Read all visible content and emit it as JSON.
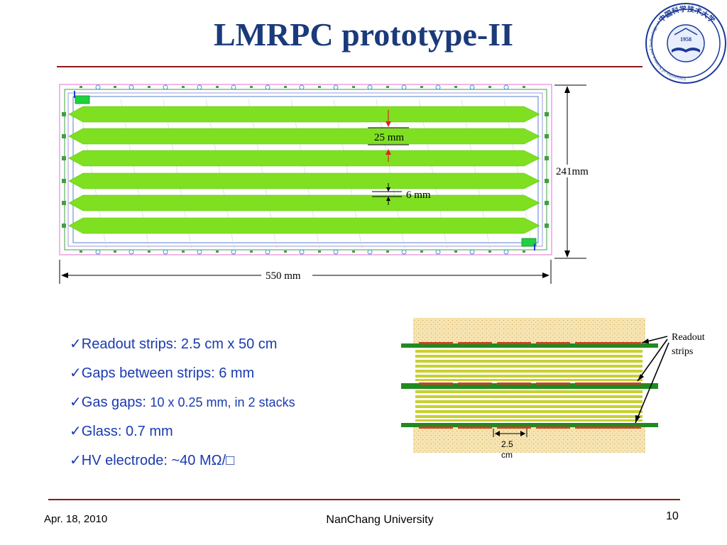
{
  "slide": {
    "title": "LMRPC prototype-II",
    "logo": {
      "year": "1958",
      "ring_text": "University of Science and Technology of China",
      "seal_chars": "中国科学技术大学"
    },
    "diagram": {
      "strip_width_label": "25 mm",
      "gap_label": "6 mm",
      "height_label": "241mm",
      "length_label": "550 mm"
    },
    "cross_section": {
      "readout_label_line1": "Readout",
      "readout_label_line2": "strips",
      "pitch_label_line1": "2.5",
      "pitch_label_line2": "cm",
      "colors": {
        "honeycomb": "#f3dfa8",
        "glass": "#c8d030",
        "pcb": "#1f8a1f",
        "strip": "#d04020"
      }
    },
    "bullets": [
      {
        "check": "✓",
        "text": "Readout strips: 2.5 cm x 50 cm"
      },
      {
        "check": "✓",
        "text": "Gaps between strips: 6 mm"
      },
      {
        "check": "✓",
        "text_main": "Gas gaps: ",
        "text_small": "10 x 0.25 mm, in 2 stacks"
      },
      {
        "check": "✓",
        "text": "Glass: 0.7 mm"
      },
      {
        "check": "✓",
        "text": "HV electrode: ~40 MΩ/□"
      }
    ],
    "footer": {
      "date": "Apr. 18, 2010",
      "center": "NanChang University",
      "page": "10"
    },
    "colors": {
      "title": "#1a3a7a",
      "bullet_text": "#1a3ab0",
      "rule": "#8b1a1a",
      "strip_fill": "#7ee020"
    }
  }
}
